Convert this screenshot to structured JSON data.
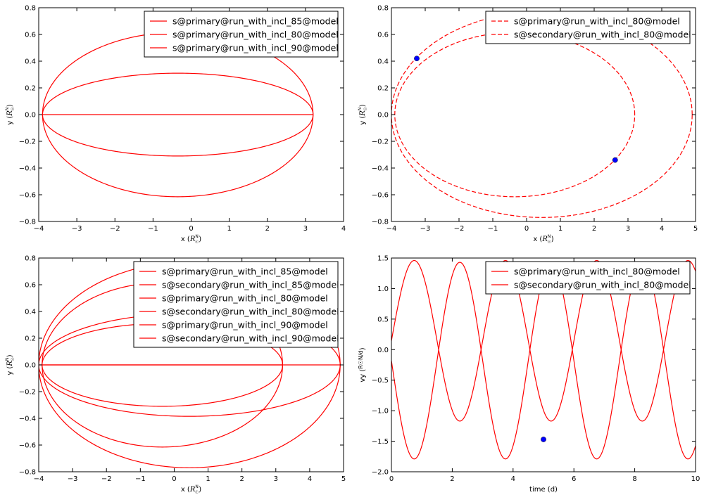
{
  "chart_data": [
    {
      "type": "line",
      "panel": "top-left",
      "xlabel": "x (R☉N)",
      "ylabel": "y (R☉N)",
      "xlim": [
        -4,
        4
      ],
      "ylim": [
        -0.8,
        0.8
      ],
      "xticks": [
        "−4",
        "−3",
        "−2",
        "−1",
        "0",
        "1",
        "2",
        "3",
        "4"
      ],
      "yticks": [
        "−0.8",
        "−0.6",
        "−0.4",
        "−0.2",
        "0.0",
        "0.2",
        "0.4",
        "0.6",
        "0.8"
      ],
      "legend_position": "top-right",
      "series": [
        {
          "name": "s@primary@run_with_incl_85@model",
          "color": "#ff0000",
          "dash": "solid",
          "orbit": {
            "cx": -0.35,
            "a": 3.55,
            "b": 0.31
          }
        },
        {
          "name": "s@primary@run_with_incl_80@model",
          "color": "#ff0000",
          "dash": "solid",
          "orbit": {
            "cx": -0.35,
            "a": 3.55,
            "b": 0.615
          }
        },
        {
          "name": "s@primary@run_with_incl_90@model",
          "color": "#ff0000",
          "dash": "solid",
          "orbit": {
            "cx": -0.35,
            "a": 3.55,
            "b": 0.0
          }
        }
      ],
      "points": []
    },
    {
      "type": "line",
      "panel": "top-right",
      "xlabel": "x (R☉N)",
      "ylabel": "y (R☉N)",
      "xlim": [
        -4,
        5
      ],
      "ylim": [
        -0.8,
        0.8
      ],
      "xticks": [
        "−4",
        "−3",
        "−2",
        "−1",
        "0",
        "1",
        "2",
        "3",
        "4",
        "5"
      ],
      "yticks": [
        "−0.8",
        "−0.6",
        "−0.4",
        "−0.2",
        "0.0",
        "0.2",
        "0.4",
        "0.6",
        "0.8"
      ],
      "legend_position": "top-right",
      "series": [
        {
          "name": "s@primary@run_with_incl_80@model",
          "color": "#ff0000",
          "dash": "dashed",
          "orbit": {
            "cx": -0.35,
            "a": 3.55,
            "b": 0.615
          }
        },
        {
          "name": "s@secondary@run_with_incl_80@model",
          "color": "#ff0000",
          "dash": "dashed",
          "orbit": {
            "cx": 0.45,
            "a": 4.45,
            "b": 0.77
          }
        }
      ],
      "points": [
        {
          "x": -3.25,
          "y": 0.42,
          "color": "#0000ff"
        },
        {
          "x": 2.62,
          "y": -0.34,
          "color": "#0000ff"
        }
      ]
    },
    {
      "type": "line",
      "panel": "bottom-left",
      "xlabel": "x (R☉N)",
      "ylabel": "y (R☉N)",
      "xlim": [
        -4,
        5
      ],
      "ylim": [
        -0.8,
        0.8
      ],
      "xticks": [
        "−4",
        "−3",
        "−2",
        "−1",
        "0",
        "1",
        "2",
        "3",
        "4",
        "5"
      ],
      "yticks": [
        "−0.8",
        "−0.6",
        "−0.4",
        "−0.2",
        "0.0",
        "0.2",
        "0.4",
        "0.6",
        "0.8"
      ],
      "legend_position": "top-right",
      "series": [
        {
          "name": "s@primary@run_with_incl_85@model",
          "color": "#ff0000",
          "dash": "solid",
          "orbit": {
            "cx": -0.35,
            "a": 3.55,
            "b": 0.31
          }
        },
        {
          "name": "s@secondary@run_with_incl_85@model",
          "color": "#ff0000",
          "dash": "solid",
          "orbit": {
            "cx": 0.45,
            "a": 4.45,
            "b": 0.385
          }
        },
        {
          "name": "s@primary@run_with_incl_80@model",
          "color": "#ff0000",
          "dash": "solid",
          "orbit": {
            "cx": -0.35,
            "a": 3.55,
            "b": 0.615
          }
        },
        {
          "name": "s@secondary@run_with_incl_80@model",
          "color": "#ff0000",
          "dash": "solid",
          "orbit": {
            "cx": 0.45,
            "a": 4.45,
            "b": 0.77
          }
        },
        {
          "name": "s@primary@run_with_incl_90@model",
          "color": "#ff0000",
          "dash": "solid",
          "orbit": {
            "cx": -0.35,
            "a": 3.55,
            "b": 0.0
          }
        },
        {
          "name": "s@secondary@run_with_incl_90@model",
          "color": "#ff0000",
          "dash": "solid",
          "orbit": {
            "cx": 0.45,
            "a": 4.45,
            "b": 0.0
          }
        }
      ],
      "points": []
    },
    {
      "type": "line",
      "panel": "bottom-right",
      "xlabel": "time (d)",
      "ylabel": "vy (R☉N/d)",
      "xlim": [
        0,
        10
      ],
      "ylim": [
        -2.0,
        1.5
      ],
      "xticks": [
        "0",
        "2",
        "4",
        "6",
        "8",
        "10"
      ],
      "yticks": [
        "−2.0",
        "−1.5",
        "−1.0",
        "−0.5",
        "0.0",
        "0.5",
        "1.0",
        "1.5"
      ],
      "legend_position": "top-right",
      "series": [
        {
          "name": "s@primary@run_with_incl_80@model",
          "color": "#ff0000",
          "dash": "solid",
          "wave": {
            "period": 3.0,
            "peak_time": 0.75,
            "max": 1.46,
            "min": -1.17
          }
        },
        {
          "name": "s@secondary@run_with_incl_80@model",
          "color": "#ff0000",
          "dash": "solid",
          "wave": {
            "period": 3.0,
            "peak_time": 2.25,
            "max": 1.43,
            "min": -1.79
          }
        }
      ],
      "points": [
        {
          "x": 5.0,
          "y": -1.47,
          "color": "#0000ff"
        }
      ]
    }
  ]
}
